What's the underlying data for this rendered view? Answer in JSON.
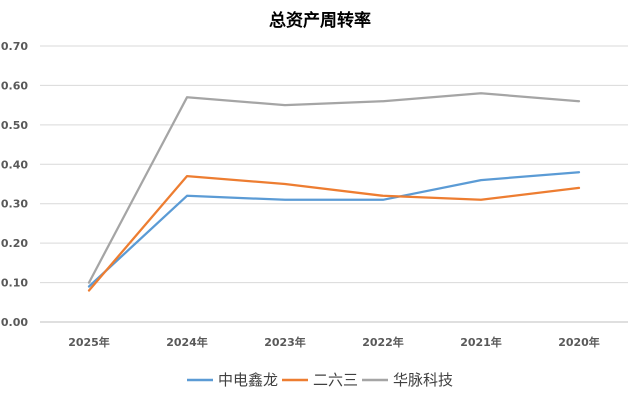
{
  "chart_data": {
    "type": "line",
    "title": "总资产周转率",
    "xlabel": "",
    "ylabel": "",
    "categories": [
      "2025年",
      "2024年",
      "2023年",
      "2022年",
      "2021年",
      "2020年"
    ],
    "ylim": [
      0,
      0.7
    ],
    "yticks": [
      "0.00",
      "0.10",
      "0.20",
      "0.30",
      "0.40",
      "0.50",
      "0.60",
      "0.70"
    ],
    "grid": true,
    "legend_position": "bottom",
    "series": [
      {
        "name": "中电鑫龙",
        "color": "#5b9bd5",
        "values": [
          0.09,
          0.32,
          0.31,
          0.31,
          0.36,
          0.38
        ]
      },
      {
        "name": "二六三",
        "color": "#ed7d31",
        "values": [
          0.08,
          0.37,
          0.35,
          0.32,
          0.31,
          0.34
        ]
      },
      {
        "name": "华脉科技",
        "color": "#a5a5a5",
        "values": [
          0.1,
          0.57,
          0.55,
          0.56,
          0.58,
          0.56
        ]
      }
    ]
  }
}
